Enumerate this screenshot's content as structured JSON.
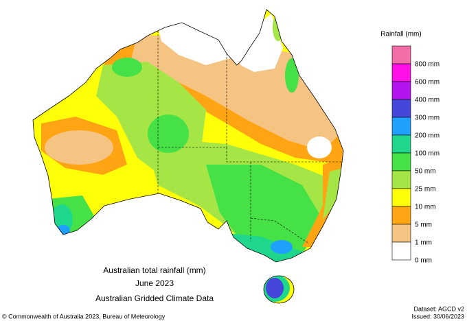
{
  "map": {
    "title_lines": [
      "Australian total rainfall (mm)",
      "June 2023",
      "Australian Gridded Climate Data"
    ],
    "legend": {
      "title": "Rainfall (mm)",
      "colors": [
        "#f36ea8",
        "#ff10e6",
        "#b414f0",
        "#4646dc",
        "#1ea0ff",
        "#1ed78c",
        "#46e146",
        "#a5e646",
        "#ffff0a",
        "#ffa514",
        "#f5c382",
        "#ffffff"
      ],
      "labels": [
        "800 mm",
        "600 mm",
        "400 mm",
        "300 mm",
        "200 mm",
        "100 mm",
        "50 mm",
        "25 mm",
        "10 mm",
        "5 mm",
        "1 mm",
        "0 mm"
      ]
    },
    "dataset": "Dataset: AGCD v2",
    "copyright": "© Commonwealth of Australia 2023, Bureau of Meteorology",
    "issued": "Issued: 30/06/2023"
  }
}
